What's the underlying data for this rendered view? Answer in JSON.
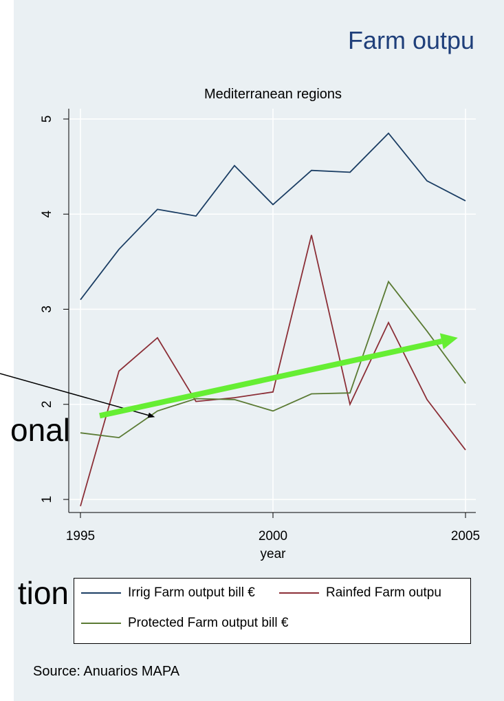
{
  "slide": {
    "title": "Farm outpu",
    "side_text_1": "onal",
    "side_text_2": "tion",
    "source": "Source: Anuarios MAPA"
  },
  "colors": {
    "panel": "#eaf0f3",
    "title": "#1f3f7a",
    "irrig": "#1a3d63",
    "rainfed": "#8b2e36",
    "protected": "#5a7a33",
    "trend_arrow": "#66ee33",
    "callout_arrow": "#000000"
  },
  "chart_data": {
    "type": "line",
    "title": "Mediterranean regions",
    "xlabel": "year",
    "ylabel": "",
    "xlim": [
      1995,
      2005
    ],
    "ylim": [
      0.9,
      5.1
    ],
    "xticks": [
      "1995",
      "2000",
      "2005"
    ],
    "yticks": [
      "1",
      "2",
      "3",
      "4",
      "5"
    ],
    "grid": true,
    "legend_position": "bottom",
    "x": [
      1995,
      1996,
      1997,
      1998,
      1999,
      2000,
      2001,
      2002,
      2003,
      2004,
      2005
    ],
    "series": [
      {
        "name": "Irrig Farm output bill €",
        "color": "#1a3d63",
        "values": [
          3.1,
          3.63,
          4.05,
          3.98,
          4.51,
          4.1,
          4.46,
          4.44,
          4.85,
          4.35,
          4.14
        ]
      },
      {
        "name": "Rainfed Farm outpu",
        "color": "#8b2e36",
        "values": [
          0.93,
          2.35,
          2.7,
          2.03,
          2.07,
          2.13,
          3.78,
          2.0,
          2.86,
          2.05,
          1.52
        ]
      },
      {
        "name": "Protected Farm output bill €",
        "color": "#5a7a33",
        "values": [
          1.7,
          1.65,
          1.93,
          2.06,
          2.05,
          1.93,
          2.11,
          2.12,
          3.29,
          2.77,
          2.22
        ]
      }
    ],
    "annotations": {
      "trend_arrow": {
        "from": [
          1995.5,
          1.88
        ],
        "to": [
          2004.8,
          2.7
        ]
      },
      "callout_arrow": {
        "to": [
          1996.9,
          1.87
        ]
      }
    }
  }
}
